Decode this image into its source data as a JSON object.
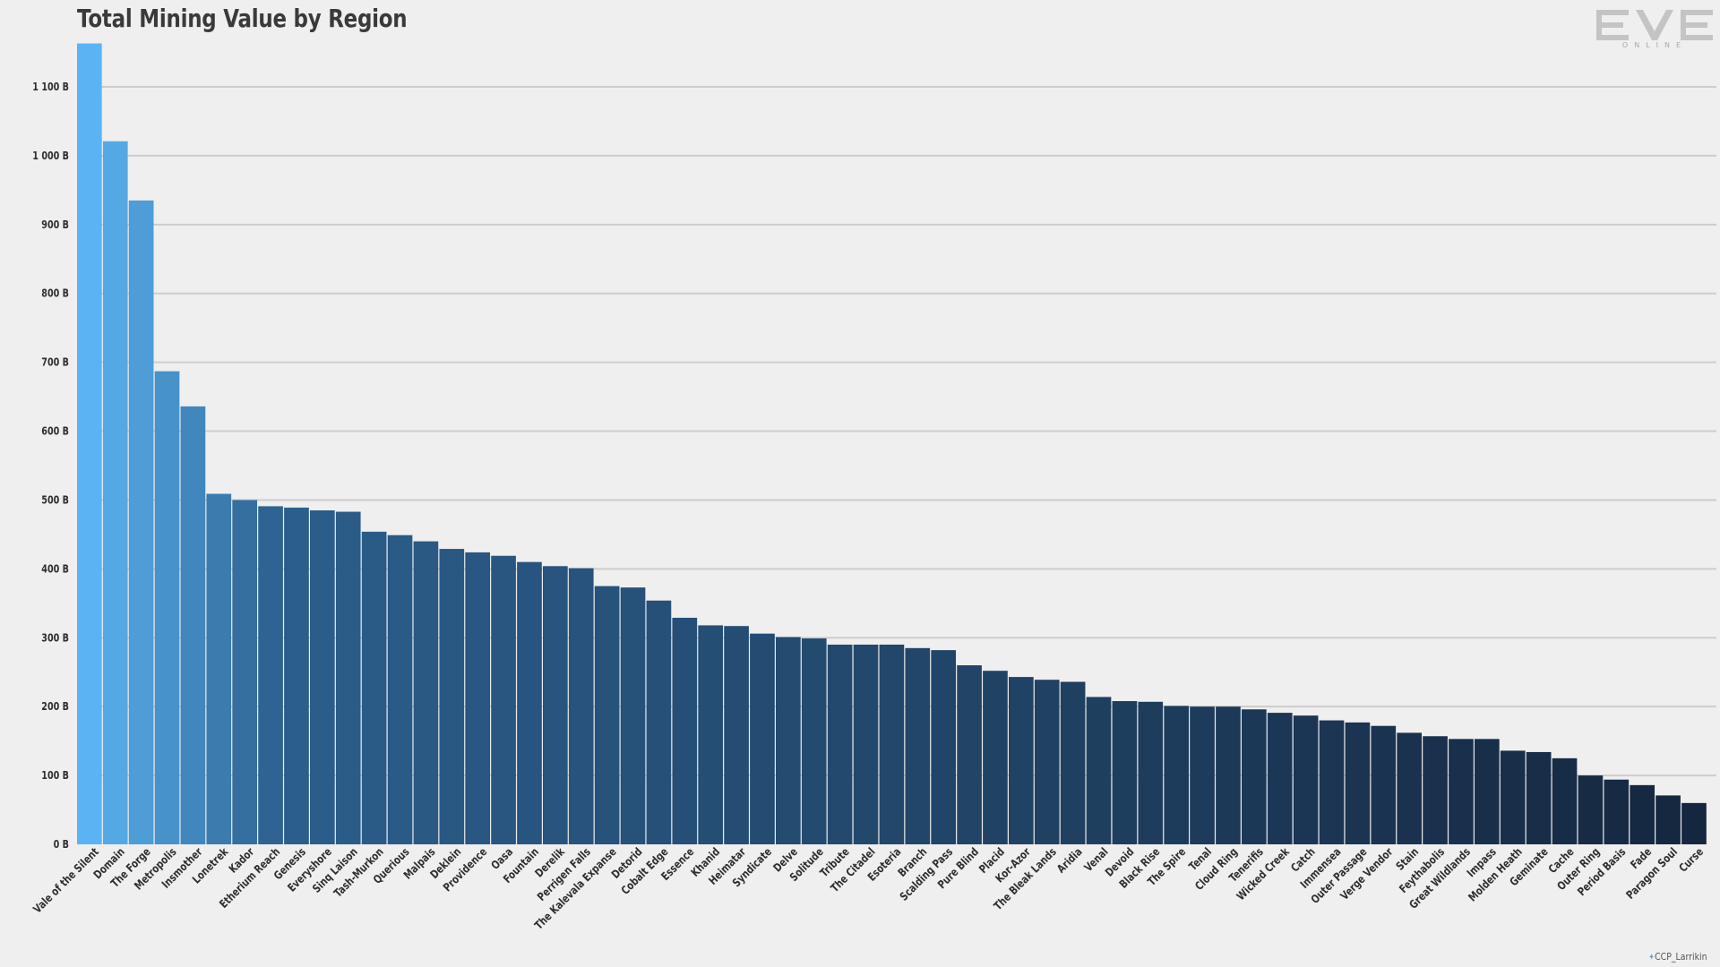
{
  "chart_data": {
    "type": "bar",
    "title": "Total Mining Value by Region",
    "xlabel": "",
    "ylabel": "",
    "ylim": [
      0,
      1170
    ],
    "yticks": [
      0,
      100,
      200,
      300,
      400,
      500,
      600,
      700,
      800,
      900,
      1000,
      1100
    ],
    "ytick_labels": [
      "0 B",
      "100 B",
      "200 B",
      "300 B",
      "400 B",
      "500 B",
      "600 B",
      "700 B",
      "800 B",
      "900 B",
      "1 000 B",
      "1 100 B"
    ],
    "grid": true,
    "legend": "none",
    "categories": [
      "Vale of the Silent",
      "Domain",
      "The Forge",
      "Metropolis",
      "Insmother",
      "Lonetrek",
      "Kador",
      "Etherium Reach",
      "Genesis",
      "Everyshore",
      "Sinq Laison",
      "Tash-Murkon",
      "Querious",
      "Malpais",
      "Deklein",
      "Providence",
      "Oasa",
      "Fountain",
      "Derelik",
      "Perrigen Falls",
      "The Kalevala Expanse",
      "Detorid",
      "Cobalt Edge",
      "Essence",
      "Khanid",
      "Heimatar",
      "Syndicate",
      "Delve",
      "Solitude",
      "Tribute",
      "The Citadel",
      "Esoteria",
      "Branch",
      "Scalding Pass",
      "Pure Blind",
      "Placid",
      "Kor-Azor",
      "The Bleak Lands",
      "Aridia",
      "Venal",
      "Devoid",
      "Black Rise",
      "The Spire",
      "Tenal",
      "Cloud Ring",
      "Tenerifis",
      "Wicked Creek",
      "Catch",
      "Immensea",
      "Outer Passage",
      "Verge Vendor",
      "Stain",
      "Feythabolis",
      "Great Wildlands",
      "Impass",
      "Molden Heath",
      "Geminate",
      "Cache",
      "Outer Ring",
      "Period Basis",
      "Fade",
      "Paragon Soul",
      "Curse"
    ],
    "values": [
      1163,
      1021,
      935,
      687,
      636,
      509,
      500,
      491,
      489,
      485,
      483,
      454,
      449,
      440,
      429,
      424,
      419,
      410,
      404,
      401,
      375,
      373,
      354,
      329,
      318,
      317,
      306,
      301,
      299,
      290,
      290,
      290,
      285,
      282,
      260,
      252,
      243,
      239,
      236,
      214,
      208,
      207,
      201,
      200,
      200,
      196,
      191,
      187,
      180,
      177,
      172,
      162,
      157,
      153,
      153,
      136,
      134,
      125,
      100,
      94,
      86,
      71,
      60
    ],
    "colors": {
      "start": "#5ab4f3",
      "mid": "#2c5f8c",
      "end": "#15273f",
      "grid": "#cdcdcd"
    }
  },
  "logo": {
    "text": "ONLINE"
  },
  "credit": {
    "text": "CCP_Larrikin"
  }
}
